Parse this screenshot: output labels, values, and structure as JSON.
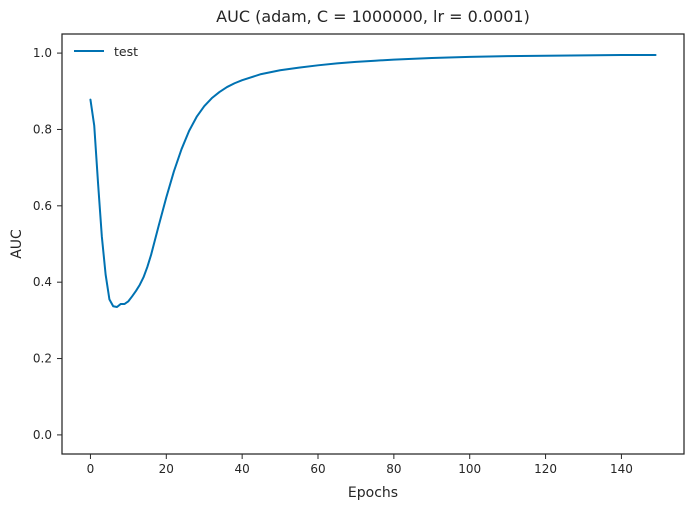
{
  "chart_data": {
    "type": "line",
    "title": "AUC (adam, C = 1000000, lr = 0.0001)",
    "xlabel": "Epochs",
    "ylabel": "AUC",
    "xlim": [
      -7.5,
      156.5
    ],
    "ylim": [
      -0.05,
      1.05
    ],
    "xticks": [
      0,
      20,
      40,
      60,
      80,
      100,
      120,
      140
    ],
    "yticks": [
      0.0,
      0.2,
      0.4,
      0.6,
      0.8,
      1.0
    ],
    "xtick_labels": [
      "0",
      "20",
      "40",
      "60",
      "80",
      "100",
      "120",
      "140"
    ],
    "ytick_labels": [
      "0.0",
      "0.2",
      "0.4",
      "0.6",
      "0.8",
      "1.0"
    ],
    "grid": false,
    "legend": {
      "position": "top-left"
    },
    "series": [
      {
        "name": "test",
        "color": "#0072b2",
        "x": [
          0,
          1,
          2,
          3,
          4,
          5,
          6,
          7,
          8,
          9,
          10,
          11,
          12,
          13,
          14,
          15,
          16,
          17,
          18,
          19,
          20,
          22,
          24,
          26,
          28,
          30,
          32,
          34,
          36,
          38,
          40,
          45,
          50,
          55,
          60,
          65,
          70,
          75,
          80,
          90,
          100,
          110,
          120,
          130,
          140,
          149
        ],
        "y": [
          0.878,
          0.81,
          0.66,
          0.52,
          0.42,
          0.355,
          0.337,
          0.335,
          0.343,
          0.343,
          0.35,
          0.363,
          0.377,
          0.393,
          0.413,
          0.44,
          0.472,
          0.51,
          0.548,
          0.585,
          0.622,
          0.69,
          0.748,
          0.796,
          0.833,
          0.861,
          0.882,
          0.898,
          0.911,
          0.921,
          0.929,
          0.945,
          0.955,
          0.962,
          0.968,
          0.973,
          0.977,
          0.98,
          0.983,
          0.987,
          0.99,
          0.992,
          0.993,
          0.994,
          0.995,
          0.995
        ]
      }
    ]
  }
}
